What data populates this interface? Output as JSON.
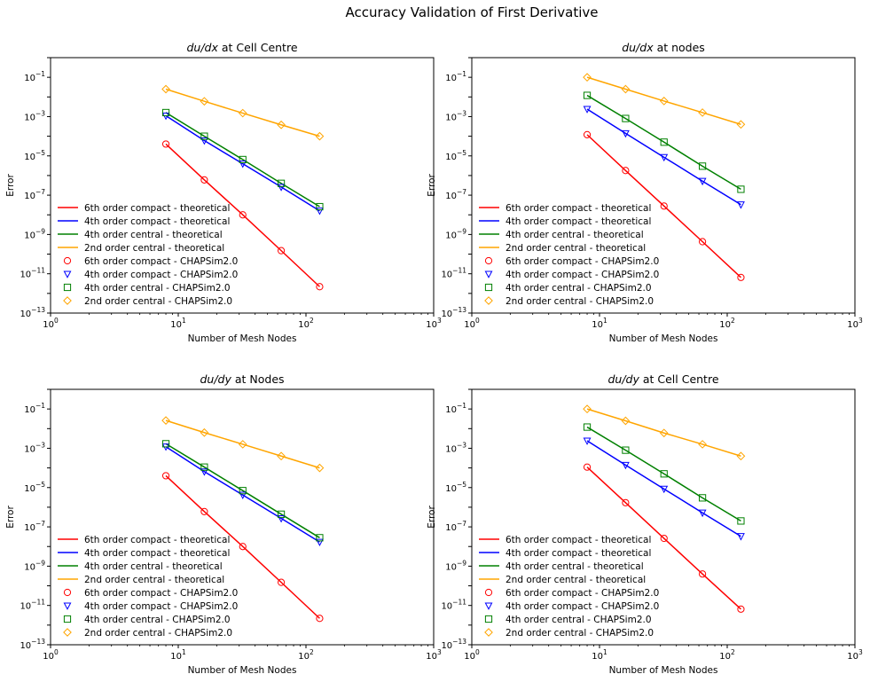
{
  "figure": {
    "title": "Accuracy Validation of First Derivative"
  },
  "colors": {
    "sixth_compact": "#ff0000",
    "fourth_compact": "#0000ff",
    "fourth_central": "#008000",
    "second_central": "#ffa500"
  },
  "chart_data": [
    {
      "type": "line",
      "title_prefix": "du/dx",
      "title_suffix": " at Cell Centre",
      "xlabel": "Number of Mesh Nodes",
      "ylabel": "Error",
      "xscale": "log",
      "yscale": "log",
      "xlim": [
        1,
        1000
      ],
      "ylim": [
        1e-13,
        1
      ],
      "xticks": [
        {
          "label_base": "10",
          "label_exp": "0"
        },
        {
          "label_base": "10",
          "label_exp": "1"
        },
        {
          "label_base": "10",
          "label_exp": "2"
        },
        {
          "label_base": "10",
          "label_exp": "3"
        }
      ],
      "yticks": [
        {
          "label_base": "10",
          "label_exp": "−1"
        },
        {
          "label_base": "10",
          "label_exp": "−3"
        },
        {
          "label_base": "10",
          "label_exp": "−5"
        },
        {
          "label_base": "10",
          "label_exp": "−7"
        },
        {
          "label_base": "10",
          "label_exp": "−9"
        },
        {
          "label_base": "10",
          "label_exp": "−11"
        },
        {
          "label_base": "10",
          "label_exp": "−13"
        }
      ],
      "grid": false,
      "legend_position": "lower-left",
      "x": [
        8,
        16,
        32,
        64,
        128
      ],
      "series": [
        {
          "name": "6th order compact - theoretical",
          "kind": "line",
          "color_key": "sixth_compact",
          "values": [
            4e-05,
            6e-07,
            1e-08,
            1.5e-10,
            2.2e-12
          ]
        },
        {
          "name": "4th order compact - theoretical",
          "kind": "line",
          "color_key": "fourth_compact",
          "values": [
            0.0011,
            6e-05,
            4e-06,
            2.6e-07,
            1.6e-08
          ]
        },
        {
          "name": "4th order central - theoretical",
          "kind": "line",
          "color_key": "fourth_central",
          "values": [
            0.0016,
            0.0001,
            6.5e-06,
            4e-07,
            2.6e-08
          ]
        },
        {
          "name": "2nd order central - theoretical",
          "kind": "line",
          "color_key": "second_central",
          "values": [
            0.025,
            0.006,
            0.0015,
            0.00038,
            0.0001
          ]
        },
        {
          "name": "6th order compact - CHAPSim2.0",
          "kind": "marker",
          "marker": "circle",
          "color_key": "sixth_compact",
          "values": [
            4e-05,
            6e-07,
            1e-08,
            1.5e-10,
            2.2e-12
          ]
        },
        {
          "name": "4th order compact - CHAPSim2.0",
          "kind": "marker",
          "marker": "triangle-down",
          "color_key": "fourth_compact",
          "values": [
            0.0011,
            6e-05,
            4e-06,
            2.6e-07,
            1.6e-08
          ]
        },
        {
          "name": "4th order central - CHAPSim2.0",
          "kind": "marker",
          "marker": "square",
          "color_key": "fourth_central",
          "values": [
            0.0016,
            0.0001,
            6.5e-06,
            4e-07,
            2.6e-08
          ]
        },
        {
          "name": "2nd order central - CHAPSim2.0",
          "kind": "marker",
          "marker": "diamond",
          "color_key": "second_central",
          "values": [
            0.025,
            0.006,
            0.0015,
            0.00038,
            0.0001
          ]
        }
      ]
    },
    {
      "type": "line",
      "title_prefix": "du/dx",
      "title_suffix": " at nodes",
      "xlabel": "Number of Mesh Nodes",
      "ylabel": "Error",
      "xscale": "log",
      "yscale": "log",
      "xlim": [
        1,
        1000
      ],
      "ylim": [
        1e-13,
        1
      ],
      "xticks": [
        {
          "label_base": "10",
          "label_exp": "0"
        },
        {
          "label_base": "10",
          "label_exp": "1"
        },
        {
          "label_base": "10",
          "label_exp": "2"
        },
        {
          "label_base": "10",
          "label_exp": "3"
        }
      ],
      "yticks": [
        {
          "label_base": "10",
          "label_exp": "−1"
        },
        {
          "label_base": "10",
          "label_exp": "−3"
        },
        {
          "label_base": "10",
          "label_exp": "−5"
        },
        {
          "label_base": "10",
          "label_exp": "−7"
        },
        {
          "label_base": "10",
          "label_exp": "−9"
        },
        {
          "label_base": "10",
          "label_exp": "−11"
        },
        {
          "label_base": "10",
          "label_exp": "−13"
        }
      ],
      "grid": false,
      "legend_position": "lower-left",
      "x": [
        8,
        16,
        32,
        64,
        128
      ],
      "series": [
        {
          "name": "6th order compact - theoretical",
          "kind": "line",
          "color_key": "sixth_compact",
          "values": [
            0.00012,
            1.8e-06,
            2.8e-08,
            4.3e-10,
            6.5e-12
          ]
        },
        {
          "name": "4th order compact - theoretical",
          "kind": "line",
          "color_key": "fourth_compact",
          "values": [
            0.0024,
            0.00014,
            8.5e-06,
            5.2e-07,
            3.3e-08
          ]
        },
        {
          "name": "4th order central - theoretical",
          "kind": "line",
          "color_key": "fourth_central",
          "values": [
            0.012,
            0.0008,
            5e-05,
            3e-06,
            2e-07
          ]
        },
        {
          "name": "2nd order central - theoretical",
          "kind": "line",
          "color_key": "second_central",
          "values": [
            0.1,
            0.025,
            0.0062,
            0.0016,
            0.0004
          ]
        },
        {
          "name": "6th order compact - CHAPSim2.0",
          "kind": "marker",
          "marker": "circle",
          "color_key": "sixth_compact",
          "values": [
            0.00012,
            1.8e-06,
            2.8e-08,
            4.3e-10,
            6.5e-12
          ]
        },
        {
          "name": "4th order compact - CHAPSim2.0",
          "kind": "marker",
          "marker": "triangle-down",
          "color_key": "fourth_compact",
          "values": [
            0.0024,
            0.00014,
            8.5e-06,
            5.2e-07,
            3.3e-08
          ]
        },
        {
          "name": "4th order central - CHAPSim2.0",
          "kind": "marker",
          "marker": "square",
          "color_key": "fourth_central",
          "values": [
            0.012,
            0.0008,
            5e-05,
            3e-06,
            2e-07
          ]
        },
        {
          "name": "2nd order central - CHAPSim2.0",
          "kind": "marker",
          "marker": "diamond",
          "color_key": "second_central",
          "values": [
            0.1,
            0.025,
            0.0062,
            0.0016,
            0.0004
          ]
        }
      ]
    },
    {
      "type": "line",
      "title_prefix": "du/dy",
      "title_suffix": " at Nodes",
      "xlabel": "Number of Mesh Nodes",
      "ylabel": "Error",
      "xscale": "log",
      "yscale": "log",
      "xlim": [
        1,
        1000
      ],
      "ylim": [
        1e-13,
        1
      ],
      "xticks": [
        {
          "label_base": "10",
          "label_exp": "0"
        },
        {
          "label_base": "10",
          "label_exp": "1"
        },
        {
          "label_base": "10",
          "label_exp": "2"
        },
        {
          "label_base": "10",
          "label_exp": "3"
        }
      ],
      "yticks": [
        {
          "label_base": "10",
          "label_exp": "−1"
        },
        {
          "label_base": "10",
          "label_exp": "−3"
        },
        {
          "label_base": "10",
          "label_exp": "−5"
        },
        {
          "label_base": "10",
          "label_exp": "−7"
        },
        {
          "label_base": "10",
          "label_exp": "−9"
        },
        {
          "label_base": "10",
          "label_exp": "−11"
        },
        {
          "label_base": "10",
          "label_exp": "−13"
        }
      ],
      "grid": false,
      "legend_position": "lower-left",
      "x": [
        8,
        16,
        32,
        64,
        128
      ],
      "series": [
        {
          "name": "6th order compact - theoretical",
          "kind": "line",
          "color_key": "sixth_compact",
          "values": [
            4e-05,
            6e-07,
            1e-08,
            1.5e-10,
            2.2e-12
          ]
        },
        {
          "name": "4th order compact - theoretical",
          "kind": "line",
          "color_key": "fourth_compact",
          "values": [
            0.0012,
            6.5e-05,
            4.2e-06,
            2.7e-07,
            1.7e-08
          ]
        },
        {
          "name": "4th order central - theoretical",
          "kind": "line",
          "color_key": "fourth_central",
          "values": [
            0.0017,
            0.00011,
            7e-06,
            4.4e-07,
            2.8e-08
          ]
        },
        {
          "name": "2nd order central - theoretical",
          "kind": "line",
          "color_key": "second_central",
          "values": [
            0.026,
            0.0063,
            0.0016,
            0.0004,
            0.0001
          ]
        },
        {
          "name": "6th order compact - CHAPSim2.0",
          "kind": "marker",
          "marker": "circle",
          "color_key": "sixth_compact",
          "values": [
            4e-05,
            6e-07,
            1e-08,
            1.5e-10,
            2.2e-12
          ]
        },
        {
          "name": "4th order compact - CHAPSim2.0",
          "kind": "marker",
          "marker": "triangle-down",
          "color_key": "fourth_compact",
          "values": [
            0.0012,
            6.5e-05,
            4.2e-06,
            2.7e-07,
            1.7e-08
          ]
        },
        {
          "name": "4th order central - CHAPSim2.0",
          "kind": "marker",
          "marker": "square",
          "color_key": "fourth_central",
          "values": [
            0.0017,
            0.00011,
            7e-06,
            4.4e-07,
            2.8e-08
          ]
        },
        {
          "name": "2nd order central - CHAPSim2.0",
          "kind": "marker",
          "marker": "diamond",
          "color_key": "second_central",
          "values": [
            0.026,
            0.0063,
            0.0016,
            0.0004,
            0.0001
          ]
        }
      ]
    },
    {
      "type": "line",
      "title_prefix": "du/dy",
      "title_suffix": " at Cell Centre",
      "xlabel": "Number of Mesh Nodes",
      "ylabel": "Error",
      "xscale": "log",
      "yscale": "log",
      "xlim": [
        1,
        1000
      ],
      "ylim": [
        1e-13,
        1
      ],
      "xticks": [
        {
          "label_base": "10",
          "label_exp": "0"
        },
        {
          "label_base": "10",
          "label_exp": "1"
        },
        {
          "label_base": "10",
          "label_exp": "2"
        },
        {
          "label_base": "10",
          "label_exp": "3"
        }
      ],
      "yticks": [
        {
          "label_base": "10",
          "label_exp": "−1"
        },
        {
          "label_base": "10",
          "label_exp": "−3"
        },
        {
          "label_base": "10",
          "label_exp": "−5"
        },
        {
          "label_base": "10",
          "label_exp": "−7"
        },
        {
          "label_base": "10",
          "label_exp": "−9"
        },
        {
          "label_base": "10",
          "label_exp": "−11"
        },
        {
          "label_base": "10",
          "label_exp": "−13"
        }
      ],
      "grid": false,
      "legend_position": "lower-left",
      "x": [
        8,
        16,
        32,
        64,
        128
      ],
      "series": [
        {
          "name": "6th order compact - theoretical",
          "kind": "line",
          "color_key": "sixth_compact",
          "values": [
            0.00011,
            1.7e-06,
            2.6e-08,
            4e-10,
            6.5e-12
          ]
        },
        {
          "name": "4th order compact - theoretical",
          "kind": "line",
          "color_key": "fourth_compact",
          "values": [
            0.0024,
            0.00014,
            8.5e-06,
            5.2e-07,
            3.3e-08
          ]
        },
        {
          "name": "4th order central - theoretical",
          "kind": "line",
          "color_key": "fourth_central",
          "values": [
            0.012,
            0.0008,
            5e-05,
            3e-06,
            2e-07
          ]
        },
        {
          "name": "2nd order central - theoretical",
          "kind": "line",
          "color_key": "second_central",
          "values": [
            0.1,
            0.025,
            0.006,
            0.0016,
            0.0004
          ]
        },
        {
          "name": "6th order compact - CHAPSim2.0",
          "kind": "marker",
          "marker": "circle",
          "color_key": "sixth_compact",
          "values": [
            0.00011,
            1.7e-06,
            2.6e-08,
            4e-10,
            6.5e-12
          ]
        },
        {
          "name": "4th order compact - CHAPSim2.0",
          "kind": "marker",
          "marker": "triangle-down",
          "color_key": "fourth_compact",
          "values": [
            0.0024,
            0.00014,
            8.5e-06,
            5.2e-07,
            3.3e-08
          ]
        },
        {
          "name": "4th order central - CHAPSim2.0",
          "kind": "marker",
          "marker": "square",
          "color_key": "fourth_central",
          "values": [
            0.012,
            0.0008,
            5e-05,
            3e-06,
            2e-07
          ]
        },
        {
          "name": "2nd order central - CHAPSim2.0",
          "kind": "marker",
          "marker": "diamond",
          "color_key": "second_central",
          "values": [
            0.1,
            0.025,
            0.006,
            0.0016,
            0.0004
          ]
        }
      ]
    }
  ]
}
